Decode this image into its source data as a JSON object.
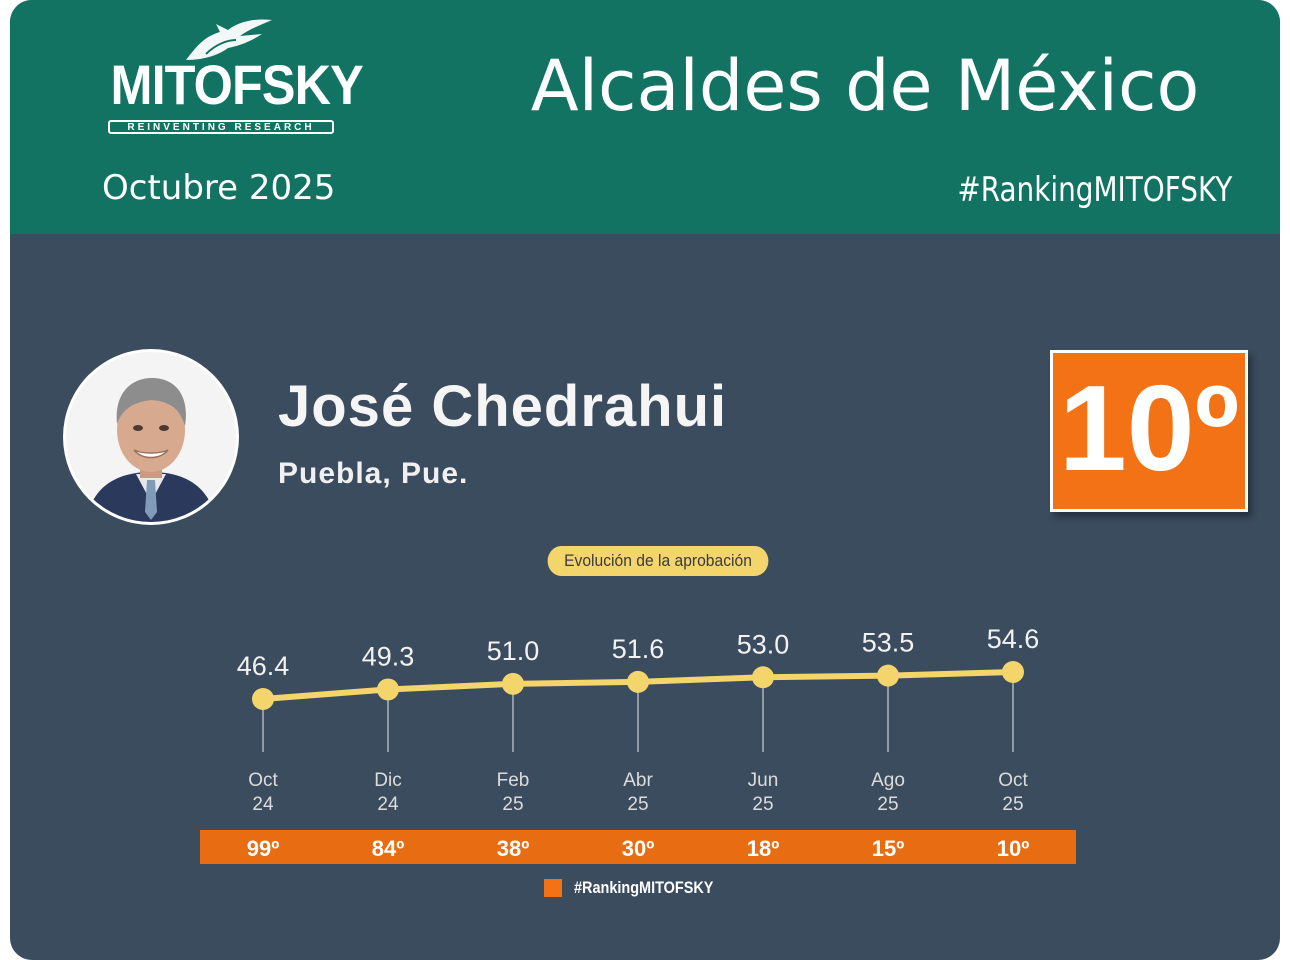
{
  "header": {
    "logo_text": "MITOFSKY",
    "logo_tagline": "REINVENTING RESEARCH",
    "title": "Alcaldes de México",
    "date": "Octubre  2025",
    "hashtag": "#RankingMITOFSKY"
  },
  "profile": {
    "name": "José Chedrahui",
    "location": "Puebla, Pue.",
    "rank": "10º"
  },
  "colors": {
    "header_bg": "#127363",
    "body_bg": "#3b4c5f",
    "accent_orange": "#f47216",
    "line_yellow": "#f3d56b"
  },
  "chart_data": {
    "type": "line",
    "title": "Evolución de la aprobación",
    "categories": [
      {
        "month": "Oct",
        "year": "24"
      },
      {
        "month": "Dic",
        "year": "24"
      },
      {
        "month": "Feb",
        "year": "25"
      },
      {
        "month": "Abr",
        "year": "25"
      },
      {
        "month": "Jun",
        "year": "25"
      },
      {
        "month": "Ago",
        "year": "25"
      },
      {
        "month": "Oct",
        "year": "25"
      }
    ],
    "values": [
      46.4,
      49.3,
      51.0,
      51.6,
      53.0,
      53.5,
      54.6
    ],
    "value_labels": [
      "46.4",
      "49.3",
      "51.0",
      "51.6",
      "53.0",
      "53.5",
      "54.6"
    ],
    "rankings": [
      "99º",
      "84º",
      "38º",
      "30º",
      "18º",
      "15º",
      "10º"
    ],
    "legend": "#RankingMITOFSKY",
    "legend_placement": "bottom-center",
    "grid": false
  }
}
